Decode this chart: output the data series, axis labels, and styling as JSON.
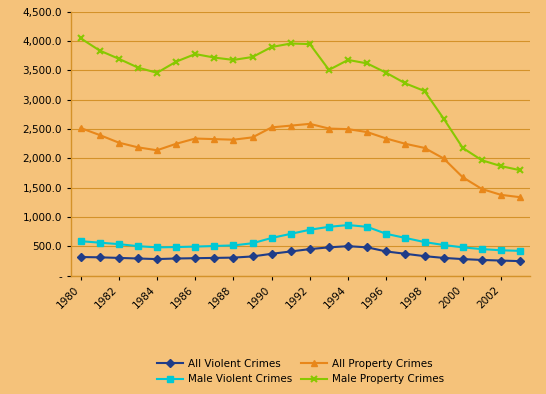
{
  "years": [
    1980,
    1981,
    1982,
    1983,
    1984,
    1985,
    1986,
    1987,
    1988,
    1989,
    1990,
    1991,
    1992,
    1993,
    1994,
    1995,
    1996,
    1997,
    1998,
    1999,
    2000,
    2001,
    2002,
    2003
  ],
  "all_violent": [
    320,
    315,
    305,
    295,
    285,
    295,
    300,
    305,
    310,
    330,
    375,
    415,
    455,
    485,
    505,
    485,
    415,
    375,
    335,
    305,
    285,
    270,
    260,
    250
  ],
  "male_violent": [
    590,
    565,
    540,
    505,
    485,
    490,
    498,
    508,
    518,
    555,
    645,
    715,
    785,
    835,
    865,
    835,
    715,
    645,
    575,
    525,
    485,
    455,
    435,
    425
  ],
  "all_property": [
    2520,
    2400,
    2270,
    2190,
    2140,
    2250,
    2340,
    2330,
    2320,
    2360,
    2530,
    2560,
    2590,
    2510,
    2500,
    2450,
    2340,
    2250,
    2180,
    2000,
    1680,
    1480,
    1380,
    1340
  ],
  "male_property": [
    4050,
    3840,
    3700,
    3550,
    3460,
    3650,
    3780,
    3720,
    3680,
    3730,
    3900,
    3960,
    3950,
    3510,
    3680,
    3620,
    3460,
    3280,
    3150,
    2680,
    2180,
    1970,
    1870,
    1800
  ],
  "background_color": "#f5c27a",
  "grid_color": "#d4922a",
  "all_violent_color": "#1f3c88",
  "male_violent_color": "#00c8d4",
  "all_property_color": "#e8871a",
  "male_property_color": "#88c800",
  "ylim": [
    0,
    4500
  ],
  "yticks": [
    0,
    500,
    1000,
    1500,
    2000,
    2500,
    3000,
    3500,
    4000,
    4500
  ],
  "xtick_years": [
    1980,
    1982,
    1984,
    1986,
    1988,
    1990,
    1992,
    1994,
    1996,
    1998,
    2000,
    2002
  ],
  "legend_order": [
    "All Violent Crimes",
    "Male Violent Crimes",
    "All Property Crimes",
    "Male Property Crimes"
  ]
}
